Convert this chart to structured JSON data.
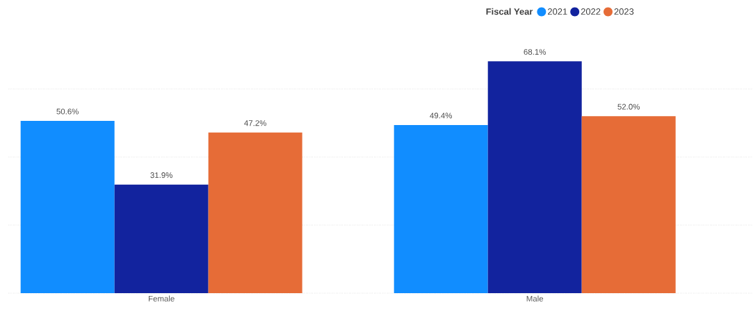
{
  "chart_data": {
    "type": "bar",
    "legend_title": "Fiscal Year",
    "legend": "top right",
    "grid": "y",
    "tick_labels": "x",
    "categories": [
      "Female",
      "Male"
    ],
    "yticks": [
      {
        "value": 0,
        "label": null
      },
      {
        "value": 20,
        "label": null
      },
      {
        "value": 40,
        "label": null
      },
      {
        "value": 60,
        "label": null
      }
    ],
    "series": [
      {
        "name": "2021",
        "color": "#118dff",
        "values": [
          50.6,
          49.4
        ],
        "value_labels": [
          "50.6%",
          "49.4%"
        ]
      },
      {
        "name": "2022",
        "color": "#12239e",
        "values": [
          31.9,
          68.1
        ],
        "value_labels": [
          "31.9%",
          "68.1%"
        ]
      },
      {
        "name": "2023",
        "color": "#e66c37",
        "values": [
          47.2,
          52.0
        ],
        "value_labels": [
          "47.2%",
          "52.0%"
        ]
      }
    ]
  }
}
